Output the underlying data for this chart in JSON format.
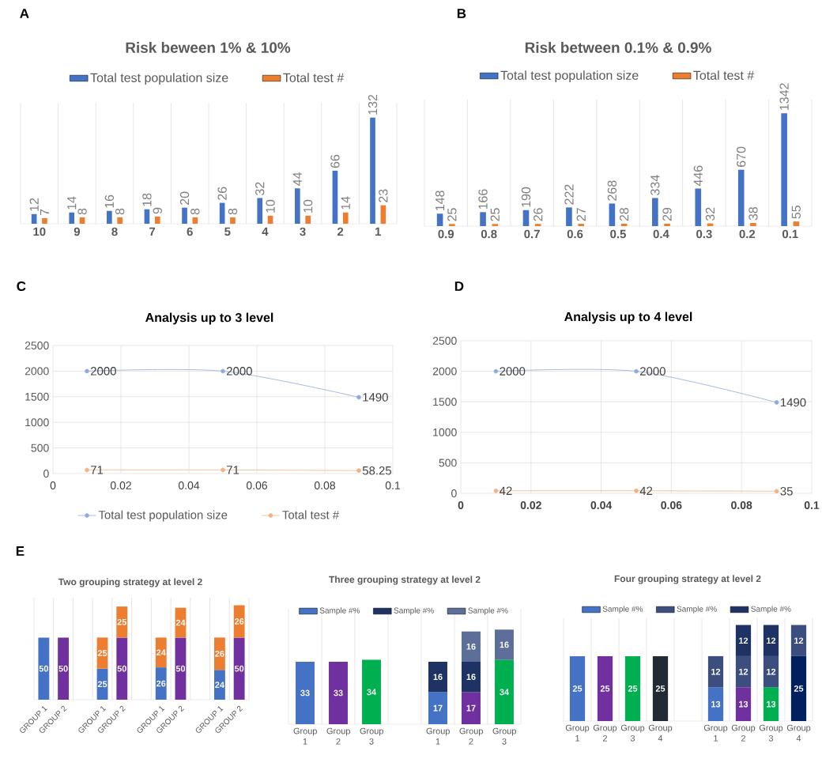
{
  "chart_data": [
    {
      "type": "bar",
      "title": "Risk beween 1% & 10%",
      "annotations": [
        "A"
      ],
      "categories": [
        "10",
        "9",
        "8",
        "7",
        "6",
        "5",
        "4",
        "3",
        "2",
        "1"
      ],
      "series": [
        {
          "name": "Total test population size",
          "color": "#4472c4",
          "values": [
            12,
            14,
            16,
            18,
            20,
            26,
            32,
            44,
            66,
            132
          ]
        },
        {
          "name": "Total test #",
          "color": "#ed7d31",
          "values": [
            7,
            8,
            8,
            9,
            8,
            8,
            10,
            10,
            14,
            23
          ]
        }
      ],
      "data_labels": true,
      "legend": "top",
      "grid": "x",
      "tick_labels": "x"
    },
    {
      "type": "bar",
      "title": "Risk between 0.1% & 0.9%",
      "annotations": [
        "B"
      ],
      "categories": [
        "0.9",
        "0.8",
        "0.7",
        "0.6",
        "0.5",
        "0.4",
        "0.3",
        "0.2",
        "0.1"
      ],
      "series": [
        {
          "name": "Total test population size",
          "color": "#4472c4",
          "values": [
            148,
            166,
            190,
            222,
            268,
            334,
            446,
            670,
            1342
          ]
        },
        {
          "name": "Total test #",
          "color": "#ed7d31",
          "values": [
            25,
            25,
            26,
            27,
            28,
            29,
            32,
            38,
            55
          ]
        }
      ],
      "data_labels": true,
      "legend": "top",
      "grid": "x",
      "tick_labels": "x"
    },
    {
      "type": "line",
      "title": "Analysis  up to 3 level",
      "annotations": [
        "C"
      ],
      "x": [
        0.01,
        0.05,
        0.09
      ],
      "series": [
        {
          "name": "Total test population size",
          "color": "#8faadc",
          "values": [
            2000,
            2000,
            1490
          ]
        },
        {
          "name": "Total test #",
          "color": "#f4b183",
          "values": [
            71,
            71,
            58.25
          ]
        }
      ],
      "xlim": [
        0,
        0.1
      ],
      "ylim": [
        0,
        2500
      ],
      "xticks": [
        0,
        0.02,
        0.04,
        0.06,
        0.08,
        0.1
      ],
      "yticks": [
        0,
        500,
        1000,
        1500,
        2000,
        2500
      ],
      "data_labels": true,
      "legend": "bottom",
      "grid": true,
      "marker": "circle"
    },
    {
      "type": "line",
      "title": "Analysis  up to 4 level",
      "annotations": [
        "D"
      ],
      "x": [
        0.01,
        0.05,
        0.09
      ],
      "series": [
        {
          "color": "#8faadc",
          "values": [
            2000,
            2000,
            1490
          ]
        },
        {
          "color": "#f4b183",
          "values": [
            42,
            42,
            35
          ]
        }
      ],
      "xlim": [
        0,
        0.1
      ],
      "ylim": [
        0,
        2500
      ],
      "xticks": [
        0,
        0.02,
        0.04,
        0.06,
        0.08,
        0.1
      ],
      "yticks": [
        0,
        500,
        1000,
        1500,
        2000,
        2500
      ],
      "data_labels": true,
      "grid": true,
      "marker": "circle"
    },
    {
      "type": "bar",
      "stacked": true,
      "title": "Two grouping strategy  at level 2",
      "annotations": [
        "E"
      ],
      "categories": [
        "GROUP 1",
        "GROUP 2",
        null,
        "GROUP 1",
        "GROUP 2",
        null,
        "GROUP 1",
        "GROUP 2",
        null,
        "GROUP 1",
        "GROUP 2"
      ],
      "series": [
        {
          "colors": [
            "#4472c4",
            "#7030a0",
            null,
            "#4472c4",
            "#7030a0",
            null,
            "#4472c4",
            "#7030a0",
            null,
            "#4472c4",
            "#7030a0"
          ],
          "values": [
            50,
            50,
            null,
            25,
            50,
            null,
            26,
            50,
            null,
            24,
            50
          ]
        },
        {
          "color": "#ed7d31",
          "values": [
            null,
            null,
            null,
            25,
            25,
            null,
            24,
            24,
            null,
            26,
            26
          ]
        }
      ],
      "data_labels": true,
      "grid": "x",
      "tick_labels": "x"
    },
    {
      "type": "bar",
      "stacked": true,
      "title": "Three grouping strategy  at level 2",
      "categories": [
        "Group 1",
        "Group 2",
        "Group 3",
        null,
        "Group 1",
        "Group 2",
        "Group 3"
      ],
      "series": [
        {
          "name": "Sample #%",
          "color": "#4472c4",
          "colors": [
            "#4472c4",
            "#7030a0",
            "#00b050",
            null,
            "#4472c4",
            "#7030a0",
            "#00b050"
          ],
          "values": [
            33,
            33,
            34,
            null,
            17,
            17,
            34
          ]
        },
        {
          "name": "Sample #%",
          "color": "#1f3264",
          "values": [
            null,
            null,
            null,
            null,
            16,
            16,
            null
          ]
        },
        {
          "name": "Sample #%",
          "color": "#5d6e99",
          "values": [
            null,
            null,
            null,
            null,
            null,
            16,
            16
          ]
        }
      ],
      "data_labels": true,
      "legend": "top",
      "grid": "x",
      "tick_labels": "x"
    },
    {
      "type": "bar",
      "stacked": true,
      "title": "Four grouping strategy  at level 2",
      "categories": [
        "Group 1",
        "Group 2",
        "Group 3",
        "Group 4",
        null,
        "Group 1",
        "Group 2",
        "Group 3",
        "Group 4"
      ],
      "series": [
        {
          "name": "Sample #%",
          "color": "#4472c4",
          "colors": [
            "#4472c4",
            "#7030a0",
            "#00b050",
            "#222a35",
            null,
            "#4472c4",
            "#7030a0",
            "#00b050",
            "#002060"
          ],
          "values": [
            25,
            25,
            25,
            25,
            null,
            13,
            13,
            13,
            25
          ]
        },
        {
          "name": "Sample #%",
          "color": "#3b4e7e",
          "values": [
            null,
            null,
            null,
            null,
            null,
            12,
            12,
            12,
            12
          ]
        },
        {
          "name": "Sample #%",
          "color": "#1f3264",
          "values": [
            null,
            null,
            null,
            null,
            null,
            null,
            12,
            12,
            null
          ]
        }
      ],
      "data_labels": true,
      "legend": "top",
      "grid": "x",
      "tick_labels": "x"
    }
  ]
}
